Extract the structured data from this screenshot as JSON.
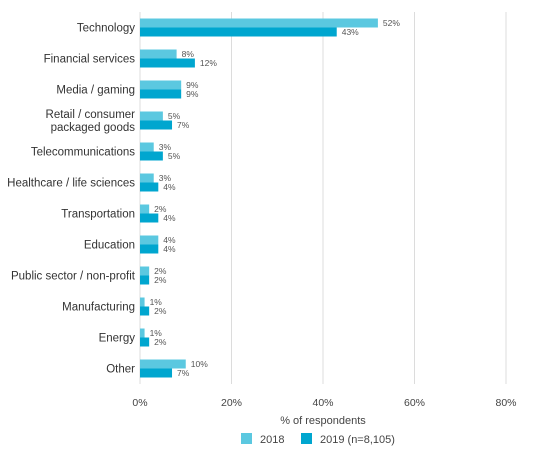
{
  "chart_data": {
    "type": "bar",
    "orientation": "horizontal",
    "categories": [
      [
        "Technology"
      ],
      [
        "Financial services"
      ],
      [
        "Media / gaming"
      ],
      [
        "Retail / consumer",
        "packaged goods"
      ],
      [
        "Telecommunications"
      ],
      [
        "Healthcare / life sciences"
      ],
      [
        "Transportation"
      ],
      [
        "Education"
      ],
      [
        "Public sector / non-profit"
      ],
      [
        "Manufacturing"
      ],
      [
        "Energy"
      ],
      [
        "Other"
      ]
    ],
    "series": [
      {
        "name": "2018",
        "color": "#5bc8e0",
        "values": [
          52,
          8,
          9,
          5,
          3,
          3,
          2,
          4,
          2,
          1,
          1,
          10
        ],
        "labels": [
          "52%",
          "8%",
          "9%",
          "5%",
          "3%",
          "3%",
          "2%",
          "4%",
          "2%",
          "1%",
          "1%",
          "10%"
        ]
      },
      {
        "name": "2019 (n=8,105)",
        "color": "#00a6cf",
        "values": [
          43,
          12,
          9,
          7,
          5,
          4,
          4,
          4,
          2,
          2,
          2,
          7
        ],
        "labels": [
          "43%",
          "12%",
          "9%",
          "7%",
          "5%",
          "4%",
          "4%",
          "4%",
          "2%",
          "2%",
          "2%",
          "7%"
        ]
      }
    ],
    "xlim": [
      0,
      80
    ],
    "xticks": [
      0,
      20,
      40,
      60,
      80
    ],
    "xtick_labels": [
      "0%",
      "20%",
      "40%",
      "60%",
      "80%"
    ],
    "xlabel": "% of respondents",
    "grid": true,
    "legend_position": "bottom"
  }
}
